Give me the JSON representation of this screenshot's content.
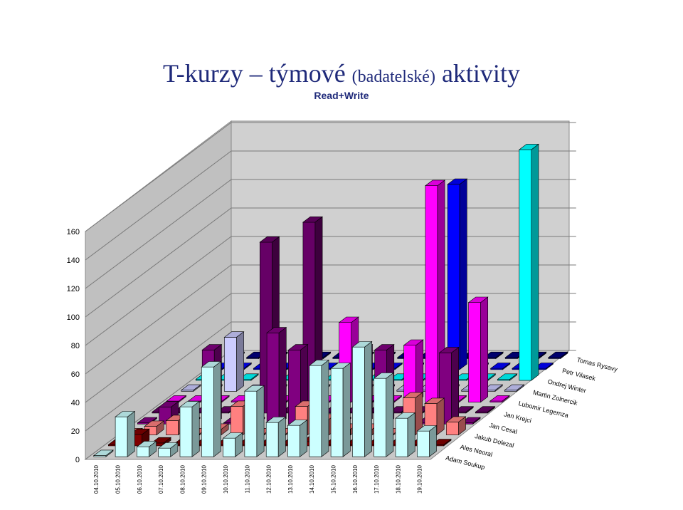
{
  "title": {
    "main": "T-kurzy – týmové",
    "paren": "(badatelské)",
    "tail": "aktivity",
    "subtitle": "Read+Write"
  },
  "chart_data": {
    "type": "bar",
    "subtype": "3d-column",
    "title": "T-kurzy – týmové (badatelské) aktivity",
    "subtitle": "Read+Write",
    "ylim": [
      0,
      160
    ],
    "yticks": [
      "0",
      "20",
      "40",
      "60",
      "80",
      "100",
      "120",
      "140",
      "160"
    ],
    "grid": true,
    "categories": [
      "04.10.2010",
      "05.10.2010",
      "06.10.2010",
      "07.10.2010",
      "08.10.2010",
      "09.10.2010",
      "10.10.2010",
      "11.10.2010",
      "12.10.2010",
      "13.10.2010",
      "14.10.2010",
      "15.10.2010",
      "16.10.2010",
      "17.10.2010",
      "18.10.2010",
      "19.10.2010"
    ],
    "series": [
      {
        "name": "Adam Soukup",
        "color": "#ccffff",
        "values": [
          0,
          28,
          7,
          6,
          35,
          63,
          13,
          46,
          24,
          22,
          64,
          62,
          77,
          55,
          27,
          18
        ]
      },
      {
        "name": "Ales Neoral",
        "color": "#800000",
        "values": [
          0,
          8,
          2,
          0,
          0,
          0,
          0,
          0,
          0,
          3,
          0,
          0,
          0,
          0,
          0,
          0
        ]
      },
      {
        "name": "Jakub Dolezal",
        "color": "#ff8080",
        "values": [
          0,
          6,
          10,
          0,
          4,
          20,
          0,
          0,
          20,
          11,
          4,
          4,
          0,
          26,
          22,
          9
        ]
      },
      {
        "name": "Jan Cesal",
        "color": "#800080",
        "values": [
          0,
          12,
          0,
          52,
          0,
          0,
          64,
          52,
          0,
          0,
          52,
          52,
          0,
          0,
          50,
          0
        ]
      },
      {
        "name": "Jan Krejci",
        "color": "#660066",
        "values": [
          0,
          0,
          0,
          0,
          0,
          120,
          0,
          134,
          0,
          0,
          0,
          0,
          0,
          0,
          0,
          0
        ]
      },
      {
        "name": "Lubomir Legemza",
        "color": "#ff00ff",
        "values": [
          0,
          0,
          0,
          0,
          0,
          0,
          0,
          0,
          56,
          0,
          0,
          40,
          152,
          0,
          70,
          0
        ]
      },
      {
        "name": "Martin Zolnercik",
        "color": "#ccccff",
        "values": [
          0,
          0,
          38,
          0,
          0,
          0,
          0,
          0,
          0,
          0,
          0,
          0,
          0,
          0,
          0,
          0
        ]
      },
      {
        "name": "Ondrej Winter",
        "color": "#00ffff",
        "values": [
          0,
          0,
          0,
          0,
          0,
          0,
          0,
          0,
          0,
          0,
          0,
          0,
          0,
          0,
          0,
          162
        ]
      },
      {
        "name": "Petr Vilasek",
        "color": "#0000ff",
        "values": [
          0,
          0,
          0,
          0,
          0,
          0,
          0,
          0,
          0,
          0,
          0,
          130,
          0,
          0,
          0,
          0
        ]
      },
      {
        "name": "Tomas Rysavy",
        "color": "#000080",
        "values": [
          0,
          0,
          0,
          0,
          0,
          0,
          0,
          0,
          0,
          0,
          0,
          0,
          0,
          0,
          0,
          0
        ]
      }
    ]
  }
}
